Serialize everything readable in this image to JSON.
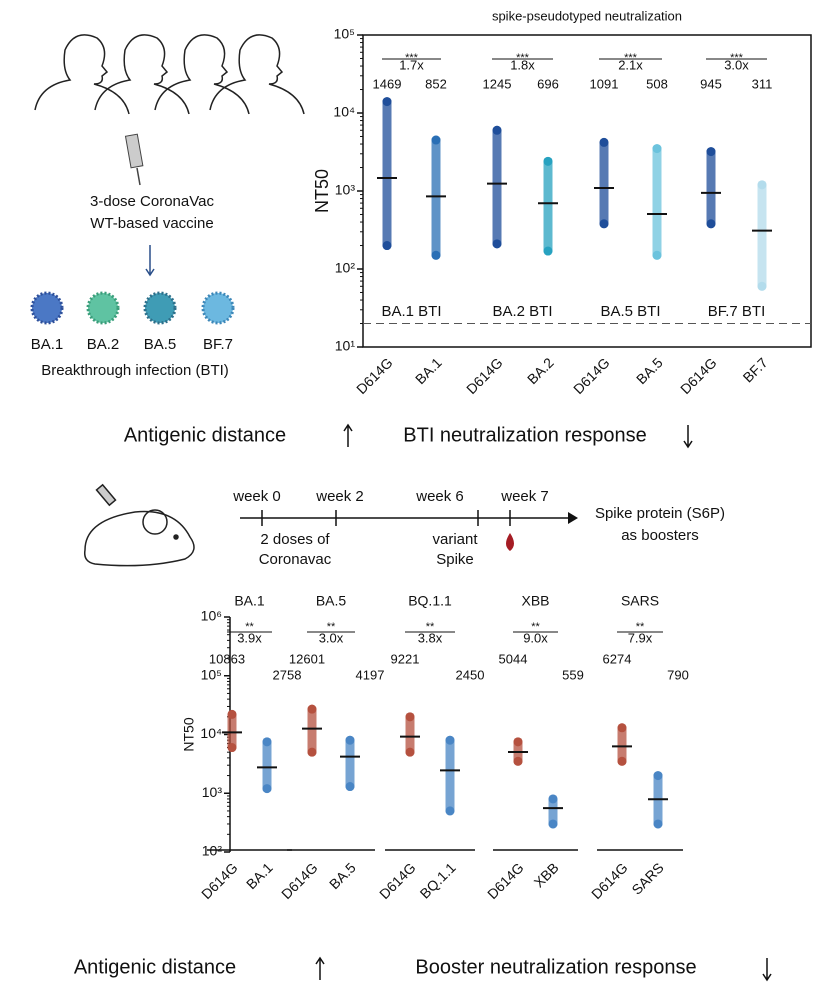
{
  "chart_data": [
    {
      "type": "dot",
      "title": "spike-pseudotyped neutralization",
      "y_label": "NT50",
      "log_y": true,
      "categories": [
        "D614G",
        "BA.1",
        "D614G",
        "BA.2",
        "D614G",
        "BA.5",
        "D614G",
        "BF.7"
      ],
      "values": [
        1469,
        852,
        1245,
        696,
        1091,
        508,
        945,
        311
      ],
      "ranges": [
        [
          200,
          14000
        ],
        [
          150,
          4500
        ],
        [
          210,
          6000
        ],
        [
          170,
          2400
        ],
        [
          380,
          4200
        ],
        [
          150,
          3500
        ],
        [
          380,
          3200
        ],
        [
          60,
          1200
        ]
      ],
      "colors": [
        "#1f4e9a",
        "#2a6fb5",
        "#1f4e9a",
        "#27a2c0",
        "#1f4e9a",
        "#6cc3dd",
        "#1f4e9a",
        "#b3dcec"
      ],
      "groups": [
        {
          "name": "BA.1 BTI",
          "stars": "***",
          "fold": "1.7x"
        },
        {
          "name": "BA.2 BTI",
          "stars": "***",
          "fold": "1.8x"
        },
        {
          "name": "BA.5 BTI",
          "stars": "***",
          "fold": "2.1x"
        },
        {
          "name": "BF.7 BTI",
          "stars": "***",
          "fold": "3.0x"
        }
      ],
      "threshold": 20,
      "ylim": [
        10,
        100000
      ],
      "yticks": [
        {
          "value": 10,
          "label": "10¹"
        },
        {
          "value": 100,
          "label": "10²"
        },
        {
          "value": 1000,
          "label": "10³"
        },
        {
          "value": 10000,
          "label": "10⁴"
        },
        {
          "value": 100000,
          "label": "10⁵"
        }
      ]
    },
    {
      "type": "dot",
      "y_label": "NT50",
      "log_y": true,
      "categories": [
        "D614G",
        "BA.1",
        "D614G",
        "BA.5",
        "D614G",
        "BQ.1.1",
        "D614G",
        "XBB",
        "D614G",
        "SARS"
      ],
      "values": [
        10863,
        2758,
        12601,
        4197,
        9221,
        2450,
        5044,
        559,
        6274,
        790
      ],
      "ranges": [
        [
          6000,
          22000
        ],
        [
          1200,
          7500
        ],
        [
          5000,
          27000
        ],
        [
          1300,
          8000
        ],
        [
          5000,
          20000
        ],
        [
          500,
          8000
        ],
        [
          3500,
          7500
        ],
        [
          300,
          800
        ],
        [
          3500,
          13000
        ],
        [
          300,
          2000
        ]
      ],
      "colors": [
        "#b5513f",
        "#4a86c5",
        "#b5513f",
        "#4a86c5",
        "#b5513f",
        "#4a86c5",
        "#b5513f",
        "#4a86c5",
        "#b5513f",
        "#4a86c5"
      ],
      "groups": [
        {
          "name": "BA.1",
          "stars": "**",
          "fold": "3.9x"
        },
        {
          "name": "BA.5",
          "stars": "**",
          "fold": "3.0x"
        },
        {
          "name": "BQ.1.1",
          "stars": "**",
          "fold": "3.8x"
        },
        {
          "name": "XBB",
          "stars": "**",
          "fold": "9.0x"
        },
        {
          "name": "SARS",
          "stars": "**",
          "fold": "7.9x"
        }
      ],
      "ylim": [
        100,
        1000000
      ],
      "yticks": [
        {
          "value": 100,
          "label": "10²"
        },
        {
          "value": 1000,
          "label": "10³"
        },
        {
          "value": 10000,
          "label": "10⁴"
        },
        {
          "value": 100000,
          "label": "10⁵"
        },
        {
          "value": 1000000,
          "label": "10⁶"
        }
      ]
    }
  ],
  "illustration": {
    "vaccine_line1": "3-dose CoronaVac",
    "vaccine_line2": "WT-based vaccine",
    "variants": [
      "BA.1",
      "BA.2",
      "BA.5",
      "BF.7"
    ],
    "caption": "Breakthrough infection (BTI)"
  },
  "summary_top": {
    "left": "Antigenic distance",
    "right": "BTI neutralization response"
  },
  "timeline": {
    "weeks": [
      "week 0",
      "week 2",
      "week 6",
      "week 7"
    ],
    "note1_line1": "2 doses of",
    "note1_line2": "Coronavac",
    "note2_line1": "variant",
    "note2_line2": "Spike",
    "right_line1": "Spike protein (S6P)",
    "right_line2": "as boosters"
  },
  "summary_bottom": {
    "left": "Antigenic distance",
    "right": "Booster neutralization response"
  }
}
